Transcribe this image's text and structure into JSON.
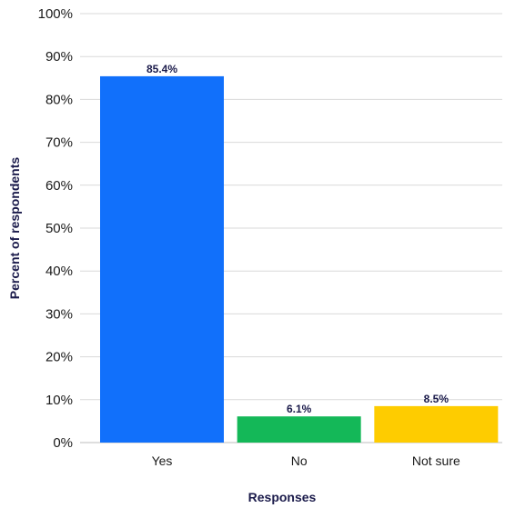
{
  "chart_data": {
    "type": "bar",
    "title": "",
    "xlabel": "Responses",
    "ylabel": "Percent of respondents",
    "categories": [
      "Yes",
      "No",
      "Not sure"
    ],
    "values": [
      85.4,
      6.1,
      8.5
    ],
    "data_labels": [
      "85.4%",
      "6.1%",
      "8.5%"
    ],
    "colors": [
      "#1170fb",
      "#14b858",
      "#fecc00"
    ],
    "ylim": [
      0,
      100
    ],
    "yticks": [
      0,
      10,
      20,
      30,
      40,
      50,
      60,
      70,
      80,
      90,
      100
    ],
    "ytick_labels": [
      "0%",
      "10%",
      "20%",
      "30%",
      "40%",
      "50%",
      "60%",
      "70%",
      "80%",
      "90%",
      "100%"
    ],
    "grid": true,
    "legend": "none"
  }
}
